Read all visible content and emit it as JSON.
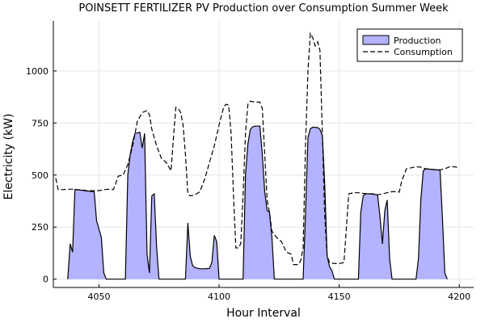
{
  "chart_data": {
    "type": "area",
    "title": "POINSETT FERTILIZER PV Production over Consumption Summer Week",
    "xlabel": "Hour Interval",
    "ylabel": "Electricity (kW)",
    "xlim": [
      4031,
      4206
    ],
    "ylim": [
      -40,
      1240
    ],
    "xticks": [
      4050,
      4100,
      4150,
      4200
    ],
    "yticks": [
      0,
      250,
      500,
      750,
      1000
    ],
    "grid": true,
    "legend_position": "top-right",
    "colors": {
      "production_fill": "#b3b3ff",
      "production_line": "#000000",
      "consumption_line": "#000000"
    },
    "series": [
      {
        "name": "Production",
        "style": "filled-area",
        "points": [
          [
            4037,
            0
          ],
          [
            4038,
            170
          ],
          [
            4039,
            130
          ],
          [
            4040,
            430
          ],
          [
            4042,
            428
          ],
          [
            4044,
            425
          ],
          [
            4046,
            422
          ],
          [
            4048,
            420
          ],
          [
            4049,
            280
          ],
          [
            4051,
            200
          ],
          [
            4052,
            30
          ],
          [
            4053,
            0
          ],
          [
            4061,
            0
          ],
          [
            4062,
            500
          ],
          [
            4063,
            600
          ],
          [
            4064,
            660
          ],
          [
            4065,
            700
          ],
          [
            4067,
            705
          ],
          [
            4068,
            630
          ],
          [
            4069,
            700
          ],
          [
            4070,
            120
          ],
          [
            4071,
            30
          ],
          [
            4072,
            400
          ],
          [
            4073,
            410
          ],
          [
            4074,
            150
          ],
          [
            4075,
            0
          ],
          [
            4086,
            0
          ],
          [
            4087,
            270
          ],
          [
            4088,
            110
          ],
          [
            4089,
            65
          ],
          [
            4090,
            55
          ],
          [
            4092,
            50
          ],
          [
            4094,
            50
          ],
          [
            4096,
            52
          ],
          [
            4097,
            80
          ],
          [
            4098,
            210
          ],
          [
            4099,
            180
          ],
          [
            4100,
            0
          ],
          [
            4110,
            0
          ],
          [
            4111,
            500
          ],
          [
            4112,
            650
          ],
          [
            4113,
            720
          ],
          [
            4114,
            732
          ],
          [
            4115,
            735
          ],
          [
            4117,
            735
          ],
          [
            4118,
            600
          ],
          [
            4119,
            420
          ],
          [
            4120,
            330
          ],
          [
            4121,
            320
          ],
          [
            4122,
            200
          ],
          [
            4123,
            0
          ],
          [
            4135,
            0
          ],
          [
            4136,
            320
          ],
          [
            4137,
            680
          ],
          [
            4138,
            722
          ],
          [
            4139,
            730
          ],
          [
            4141,
            728
          ],
          [
            4142,
            720
          ],
          [
            4143,
            690
          ],
          [
            4144,
            450
          ],
          [
            4145,
            110
          ],
          [
            4146,
            60
          ],
          [
            4147,
            40
          ],
          [
            4148,
            0
          ],
          [
            4158,
            0
          ],
          [
            4159,
            320
          ],
          [
            4160,
            400
          ],
          [
            4161,
            410
          ],
          [
            4163,
            410
          ],
          [
            4166,
            405
          ],
          [
            4167,
            300
          ],
          [
            4168,
            170
          ],
          [
            4169,
            330
          ],
          [
            4170,
            380
          ],
          [
            4171,
            100
          ],
          [
            4172,
            0
          ],
          [
            4182,
            0
          ],
          [
            4183,
            100
          ],
          [
            4184,
            380
          ],
          [
            4185,
            520
          ],
          [
            4186,
            530
          ],
          [
            4188,
            528
          ],
          [
            4190,
            526
          ],
          [
            4192,
            524
          ],
          [
            4193,
            290
          ],
          [
            4194,
            30
          ],
          [
            4195,
            0
          ]
        ]
      },
      {
        "name": "Consumption",
        "style": "dashed-line",
        "points": [
          [
            4032,
            485
          ],
          [
            4033,
            430
          ],
          [
            4035,
            430
          ],
          [
            4037,
            432
          ],
          [
            4039,
            432
          ],
          [
            4041,
            430
          ],
          [
            4043,
            428
          ],
          [
            4045,
            425
          ],
          [
            4048,
            425
          ],
          [
            4050,
            425
          ],
          [
            4052,
            430
          ],
          [
            4054,
            432
          ],
          [
            4056,
            430
          ],
          [
            4057,
            460
          ],
          [
            4058,
            495
          ],
          [
            4060,
            500
          ],
          [
            4062,
            550
          ],
          [
            4064,
            640
          ],
          [
            4066,
            760
          ],
          [
            4068,
            800
          ],
          [
            4070,
            810
          ],
          [
            4071,
            790
          ],
          [
            4072,
            720
          ],
          [
            4074,
            640
          ],
          [
            4076,
            580
          ],
          [
            4078,
            560
          ],
          [
            4080,
            520
          ],
          [
            4081,
            680
          ],
          [
            4082,
            825
          ],
          [
            4083,
            820
          ],
          [
            4084,
            800
          ],
          [
            4085,
            740
          ],
          [
            4086,
            600
          ],
          [
            4087,
            410
          ],
          [
            4088,
            400
          ],
          [
            4090,
            405
          ],
          [
            4092,
            420
          ],
          [
            4094,
            480
          ],
          [
            4096,
            560
          ],
          [
            4098,
            640
          ],
          [
            4100,
            740
          ],
          [
            4102,
            830
          ],
          [
            4103,
            840
          ],
          [
            4104,
            835
          ],
          [
            4105,
            700
          ],
          [
            4106,
            400
          ],
          [
            4107,
            150
          ],
          [
            4108,
            150
          ],
          [
            4109,
            170
          ],
          [
            4110,
            400
          ],
          [
            4111,
            700
          ],
          [
            4112,
            840
          ],
          [
            4113,
            855
          ],
          [
            4115,
            850
          ],
          [
            4117,
            850
          ],
          [
            4118,
            820
          ],
          [
            4119,
            600
          ],
          [
            4120,
            380
          ],
          [
            4121,
            320
          ],
          [
            4122,
            230
          ],
          [
            4124,
            200
          ],
          [
            4126,
            180
          ],
          [
            4128,
            130
          ],
          [
            4130,
            120
          ],
          [
            4131,
            70
          ],
          [
            4133,
            70
          ],
          [
            4134,
            90
          ],
          [
            4135,
            150
          ],
          [
            4136,
            650
          ],
          [
            4137,
            1000
          ],
          [
            4138,
            1180
          ],
          [
            4139,
            1160
          ],
          [
            4140,
            1120
          ],
          [
            4141,
            1140
          ],
          [
            4142,
            1100
          ],
          [
            4143,
            700
          ],
          [
            4144,
            300
          ],
          [
            4145,
            110
          ],
          [
            4146,
            80
          ],
          [
            4148,
            75
          ],
          [
            4150,
            75
          ],
          [
            4152,
            80
          ],
          [
            4154,
            410
          ],
          [
            4156,
            415
          ],
          [
            4158,
            415
          ],
          [
            4160,
            412
          ],
          [
            4162,
            410
          ],
          [
            4164,
            410
          ],
          [
            4166,
            405
          ],
          [
            4168,
            410
          ],
          [
            4170,
            415
          ],
          [
            4172,
            420
          ],
          [
            4174,
            420
          ],
          [
            4175,
            418
          ],
          [
            4176,
            470
          ],
          [
            4178,
            530
          ],
          [
            4180,
            535
          ],
          [
            4182,
            540
          ],
          [
            4184,
            538
          ],
          [
            4186,
            530
          ],
          [
            4188,
            528
          ],
          [
            4190,
            526
          ],
          [
            4192,
            525
          ],
          [
            4194,
            530
          ],
          [
            4196,
            540
          ],
          [
            4198,
            540
          ],
          [
            4200,
            535
          ]
        ]
      }
    ]
  }
}
